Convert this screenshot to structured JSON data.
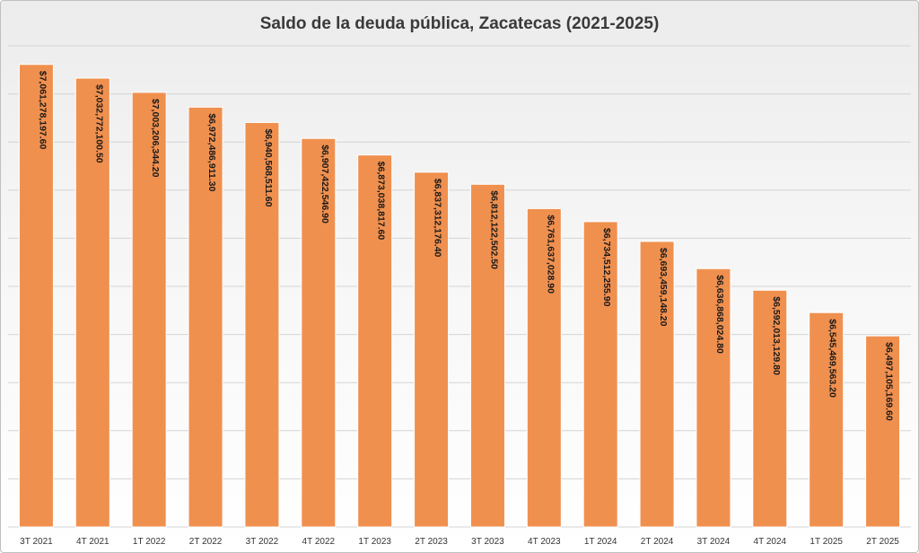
{
  "chart_data": {
    "type": "bar",
    "title": "Saldo de la deuda pública, Zacatecas (2021-2025)",
    "xlabel": "",
    "ylabel": "",
    "grid": true,
    "legend": "none",
    "ylim": [
      6100000000,
      7100000000
    ],
    "colors": {
      "bar": "#f0904f",
      "grid": "#d4d4d4"
    },
    "categories": [
      "3T 2021",
      "4T 2021",
      "1T 2022",
      "2T 2022",
      "3T 2022",
      "4T 2022",
      "1T 2023",
      "2T 2023",
      "3T 2023",
      "4T 2023",
      "1T 2024",
      "2T 2024",
      "3T 2024",
      "4T 2024",
      "1T 2025",
      "2T 2025"
    ],
    "values": [
      7061278197.6,
      7032772100.5,
      7003206344.2,
      6972486911.3,
      6940568511.6,
      6907422546.9,
      6873038817.6,
      6837312176.4,
      6812122502.5,
      6761637028.9,
      6734512255.9,
      6693459148.2,
      6636868024.8,
      6592013129.8,
      6545469563.2,
      6497105169.6
    ],
    "data_labels": [
      "$7,061,278,197.60",
      "$7,032,772,100.50",
      "$7,003,206,344.20",
      "$6,972,486,911.30",
      "$6,940,568,511.60",
      "$6,907,422,546.90",
      "$6,873,038,817.60",
      "$6,837,312,176.40",
      "$6,812,122,502.50",
      "$6,761,637,028.90",
      "$6,734,512,255.90",
      "$6,693,459,148.20",
      "$6,636,868,024.80",
      "$6,592,013,129.80",
      "$6,545,469,563.20",
      "$6,497,105,169.60"
    ]
  }
}
